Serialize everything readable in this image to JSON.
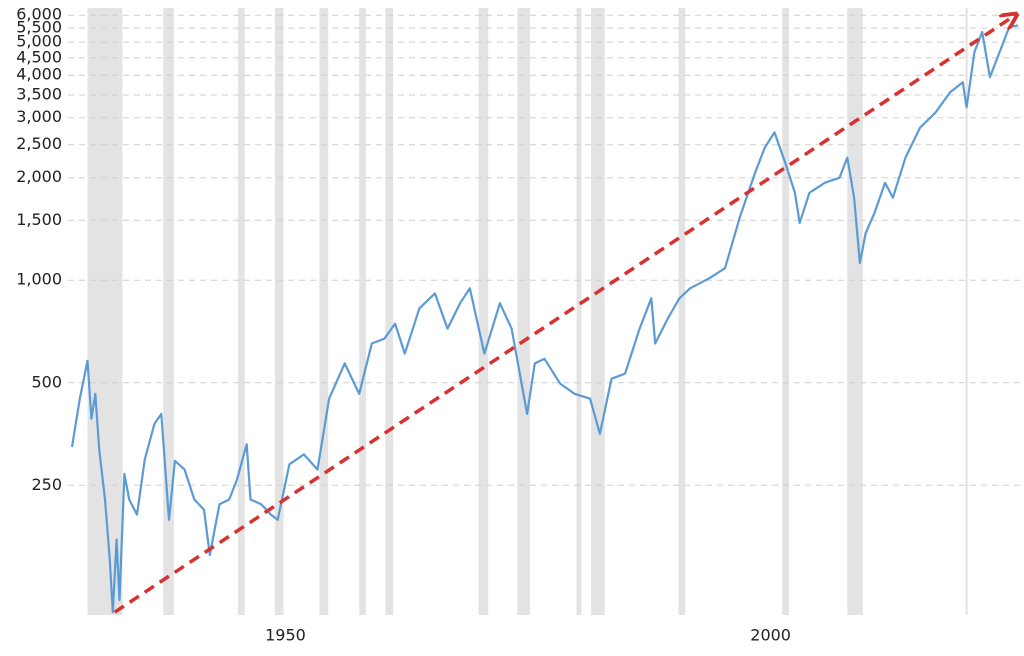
{
  "chart_data": {
    "type": "line",
    "yscale": "log",
    "grid": true,
    "xlim": [
      1928,
      2025.7
    ],
    "ylim": [
      104,
      6300
    ],
    "xticks": [
      1950,
      2000
    ],
    "yticks": [
      250,
      500,
      {
        "value": 1000,
        "label": "1,000"
      },
      {
        "value": 1500,
        "label": "1,500"
      },
      {
        "value": 2000,
        "label": "2,000"
      },
      {
        "value": 2500,
        "label": "2,500"
      },
      {
        "value": 3000,
        "label": "3,000"
      },
      {
        "value": 3500,
        "label": "3,500"
      },
      {
        "value": 4000,
        "label": "4,000"
      },
      {
        "value": 4500,
        "label": "4,500"
      },
      {
        "value": 5000,
        "label": "5,000"
      },
      {
        "value": 5500,
        "label": "5,500"
      },
      {
        "value": 6000,
        "label": "6,000"
      }
    ],
    "recession_color": "#e3e3e3",
    "recessions": [
      [
        1929.6,
        1933.2
      ],
      [
        1937.4,
        1938.5
      ],
      [
        1945.1,
        1945.8
      ],
      [
        1948.9,
        1949.8
      ],
      [
        1953.5,
        1954.4
      ],
      [
        1957.6,
        1958.3
      ],
      [
        1960.3,
        1961.1
      ],
      [
        1969.9,
        1970.9
      ],
      [
        1973.9,
        1975.2
      ],
      [
        1980.0,
        1980.5
      ],
      [
        1981.5,
        1982.9
      ],
      [
        1990.5,
        1991.2
      ],
      [
        2001.2,
        2001.9
      ],
      [
        2007.9,
        2009.5
      ],
      [
        2020.1,
        2020.3
      ]
    ],
    "series": [
      {
        "color": "#5b9bd5",
        "x": [
          1928.0,
          1928.8,
          1929.6,
          1930.0,
          1930.4,
          1930.8,
          1931.4,
          1931.9,
          1932.2,
          1932.6,
          1932.9,
          1933.4,
          1933.9,
          1934.7,
          1935.5,
          1936.5,
          1937.2,
          1938.0,
          1938.6,
          1939.6,
          1940.6,
          1941.6,
          1942.2,
          1943.2,
          1944.2,
          1945.0,
          1946.0,
          1946.4,
          1947.5,
          1948.5,
          1949.2,
          1950.4,
          1951.9,
          1953.3,
          1954.5,
          1956.1,
          1957.6,
          1958.9,
          1960.2,
          1961.3,
          1962.3,
          1963.8,
          1965.4,
          1966.7,
          1968.0,
          1969.0,
          1970.5,
          1972.1,
          1973.3,
          1974.9,
          1975.7,
          1976.7,
          1978.3,
          1979.8,
          1981.4,
          1982.4,
          1983.6,
          1985.0,
          1986.5,
          1987.7,
          1988.1,
          1989.4,
          1990.6,
          1991.7,
          1993.7,
          1995.3,
          1996.8,
          1998.4,
          1999.4,
          2000.4,
          2001.5,
          2002.5,
          2003.0,
          2004.0,
          2005.6,
          2007.1,
          2007.9,
          2008.6,
          2009.2,
          2009.8,
          2010.7,
          2011.8,
          2012.6,
          2013.9,
          2015.4,
          2017.0,
          2018.5,
          2019.8,
          2020.2,
          2021.0,
          2021.8,
          2022.6,
          2023.6,
          2024.6,
          2025.5
        ],
        "values": [
          324,
          449,
          580,
          392,
          464,
          319,
          227,
          151,
          106,
          173,
          115,
          270,
          227,
          205,
          298,
          379,
          405,
          198,
          295,
          278,
          227,
          212,
          156,
          220,
          227,
          260,
          330,
          227,
          220,
          205,
          198,
          288,
          308,
          278,
          449,
          570,
          464,
          652,
          674,
          746,
          609,
          827,
          915,
          721,
          856,
          947,
          609,
          856,
          721,
          405,
          570,
          588,
          497,
          464,
          449,
          354,
          514,
          532,
          721,
          885,
          652,
          772,
          885,
          947,
          1014,
          1085,
          1524,
          2069,
          2452,
          2716,
          2215,
          1806,
          1473,
          1806,
          1933,
          2000,
          2291,
          1747,
          1122,
          1376,
          1577,
          1933,
          1747,
          2291,
          2809,
          3110,
          3563,
          3813,
          3218,
          4676,
          5358,
          3945,
          4676,
          5544,
          5600
        ]
      }
    ],
    "trend": {
      "color": "#d93030",
      "x": [
        1932.4,
        2025.2
      ],
      "values": [
        106,
        6000
      ]
    }
  }
}
